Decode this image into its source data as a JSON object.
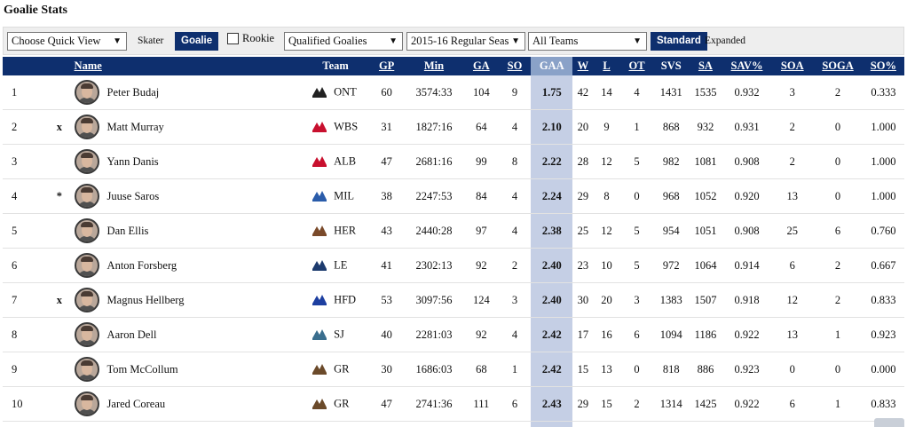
{
  "page": {
    "title": "Goalie Stats"
  },
  "filters": {
    "quick_view": "Choose Quick View",
    "skater_label": "Skater",
    "goalie_label": "Goalie",
    "rookie_label": "Rookie",
    "qualified": "Qualified Goalies",
    "season": "2015-16 Regular Seas",
    "teams": "All Teams",
    "standard_label": "Standard",
    "expanded_label": "Expanded"
  },
  "table": {
    "headers": {
      "name": "Name",
      "team": "Team",
      "gp": "GP",
      "min": "Min",
      "ga": "GA",
      "so": "SO",
      "gaa": "GAA",
      "w": "W",
      "l": "L",
      "ot": "OT",
      "svs": "SVS",
      "sa": "SA",
      "svpct": "SAV%",
      "soa": "SOA",
      "soga": "SOGA",
      "sopct": "SO%"
    },
    "rows": [
      {
        "rank": "1",
        "flag": "",
        "name": "Peter Budaj",
        "team": "ONT",
        "logo": "ontario-reign-logo",
        "gp": "60",
        "min": "3574:33",
        "ga": "104",
        "so": "9",
        "gaa": "1.75",
        "w": "42",
        "l": "14",
        "ot": "4",
        "svs": "1431",
        "sa": "1535",
        "svpct": "0.932",
        "soa": "3",
        "soga": "2",
        "sopct": "0.333"
      },
      {
        "rank": "2",
        "flag": "x",
        "name": "Matt Murray",
        "team": "WBS",
        "logo": "wbs-penguins-logo",
        "gp": "31",
        "min": "1827:16",
        "ga": "64",
        "so": "4",
        "gaa": "2.10",
        "w": "20",
        "l": "9",
        "ot": "1",
        "svs": "868",
        "sa": "932",
        "svpct": "0.931",
        "soa": "2",
        "soga": "0",
        "sopct": "1.000"
      },
      {
        "rank": "3",
        "flag": "",
        "name": "Yann Danis",
        "team": "ALB",
        "logo": "albany-devils-logo",
        "gp": "47",
        "min": "2681:16",
        "ga": "99",
        "so": "8",
        "gaa": "2.22",
        "w": "28",
        "l": "12",
        "ot": "5",
        "svs": "982",
        "sa": "1081",
        "svpct": "0.908",
        "soa": "2",
        "soga": "0",
        "sopct": "1.000"
      },
      {
        "rank": "4",
        "flag": "*",
        "name": "Juuse Saros",
        "team": "MIL",
        "logo": "milwaukee-admirals-logo",
        "gp": "38",
        "min": "2247:53",
        "ga": "84",
        "so": "4",
        "gaa": "2.24",
        "w": "29",
        "l": "8",
        "ot": "0",
        "svs": "968",
        "sa": "1052",
        "svpct": "0.920",
        "soa": "13",
        "soga": "0",
        "sopct": "1.000"
      },
      {
        "rank": "5",
        "flag": "",
        "name": "Dan Ellis",
        "team": "HER",
        "logo": "hershey-bears-logo",
        "gp": "43",
        "min": "2440:28",
        "ga": "97",
        "so": "4",
        "gaa": "2.38",
        "w": "25",
        "l": "12",
        "ot": "5",
        "svs": "954",
        "sa": "1051",
        "svpct": "0.908",
        "soa": "25",
        "soga": "6",
        "sopct": "0.760"
      },
      {
        "rank": "6",
        "flag": "",
        "name": "Anton Forsberg",
        "team": "LE",
        "logo": "lake-erie-monsters-logo",
        "gp": "41",
        "min": "2302:13",
        "ga": "92",
        "so": "2",
        "gaa": "2.40",
        "w": "23",
        "l": "10",
        "ot": "5",
        "svs": "972",
        "sa": "1064",
        "svpct": "0.914",
        "soa": "6",
        "soga": "2",
        "sopct": "0.667"
      },
      {
        "rank": "7",
        "flag": "x",
        "name": "Magnus Hellberg",
        "team": "HFD",
        "logo": "hartford-wolf-pack-logo",
        "gp": "53",
        "min": "3097:56",
        "ga": "124",
        "so": "3",
        "gaa": "2.40",
        "w": "30",
        "l": "20",
        "ot": "3",
        "svs": "1383",
        "sa": "1507",
        "svpct": "0.918",
        "soa": "12",
        "soga": "2",
        "sopct": "0.833"
      },
      {
        "rank": "8",
        "flag": "",
        "name": "Aaron Dell",
        "team": "SJ",
        "logo": "san-jose-barracuda-logo",
        "gp": "40",
        "min": "2281:03",
        "ga": "92",
        "so": "4",
        "gaa": "2.42",
        "w": "17",
        "l": "16",
        "ot": "6",
        "svs": "1094",
        "sa": "1186",
        "svpct": "0.922",
        "soa": "13",
        "soga": "1",
        "sopct": "0.923"
      },
      {
        "rank": "9",
        "flag": "",
        "name": "Tom McCollum",
        "team": "GR",
        "logo": "grand-rapids-griffins-logo",
        "gp": "30",
        "min": "1686:03",
        "ga": "68",
        "so": "1",
        "gaa": "2.42",
        "w": "15",
        "l": "13",
        "ot": "0",
        "svs": "818",
        "sa": "886",
        "svpct": "0.923",
        "soa": "0",
        "soga": "0",
        "sopct": "0.000"
      },
      {
        "rank": "10",
        "flag": "",
        "name": "Jared Coreau",
        "team": "GR",
        "logo": "grand-rapids-griffins-logo",
        "gp": "47",
        "min": "2741:36",
        "ga": "111",
        "so": "6",
        "gaa": "2.43",
        "w": "29",
        "l": "15",
        "ot": "2",
        "svs": "1314",
        "sa": "1425",
        "svpct": "0.922",
        "soa": "6",
        "soga": "1",
        "sopct": "0.833"
      }
    ]
  },
  "colors": {
    "header_bg": "#0e2f6e",
    "sorted_header_bg": "#8aa2c8",
    "sorted_cell_bg": "#c5cfe5",
    "logos": {
      "ontario-reign-logo": "#222222",
      "wbs-penguins-logo": "#c8102e",
      "albany-devils-logo": "#c8102e",
      "milwaukee-admirals-logo": "#2a5caa",
      "hershey-bears-logo": "#7a4a2a",
      "lake-erie-monsters-logo": "#1d3b6e",
      "hartford-wolf-pack-logo": "#1d3fa0",
      "san-jose-barracuda-logo": "#3a6e8e",
      "grand-rapids-griffins-logo": "#6b4a2a"
    }
  }
}
